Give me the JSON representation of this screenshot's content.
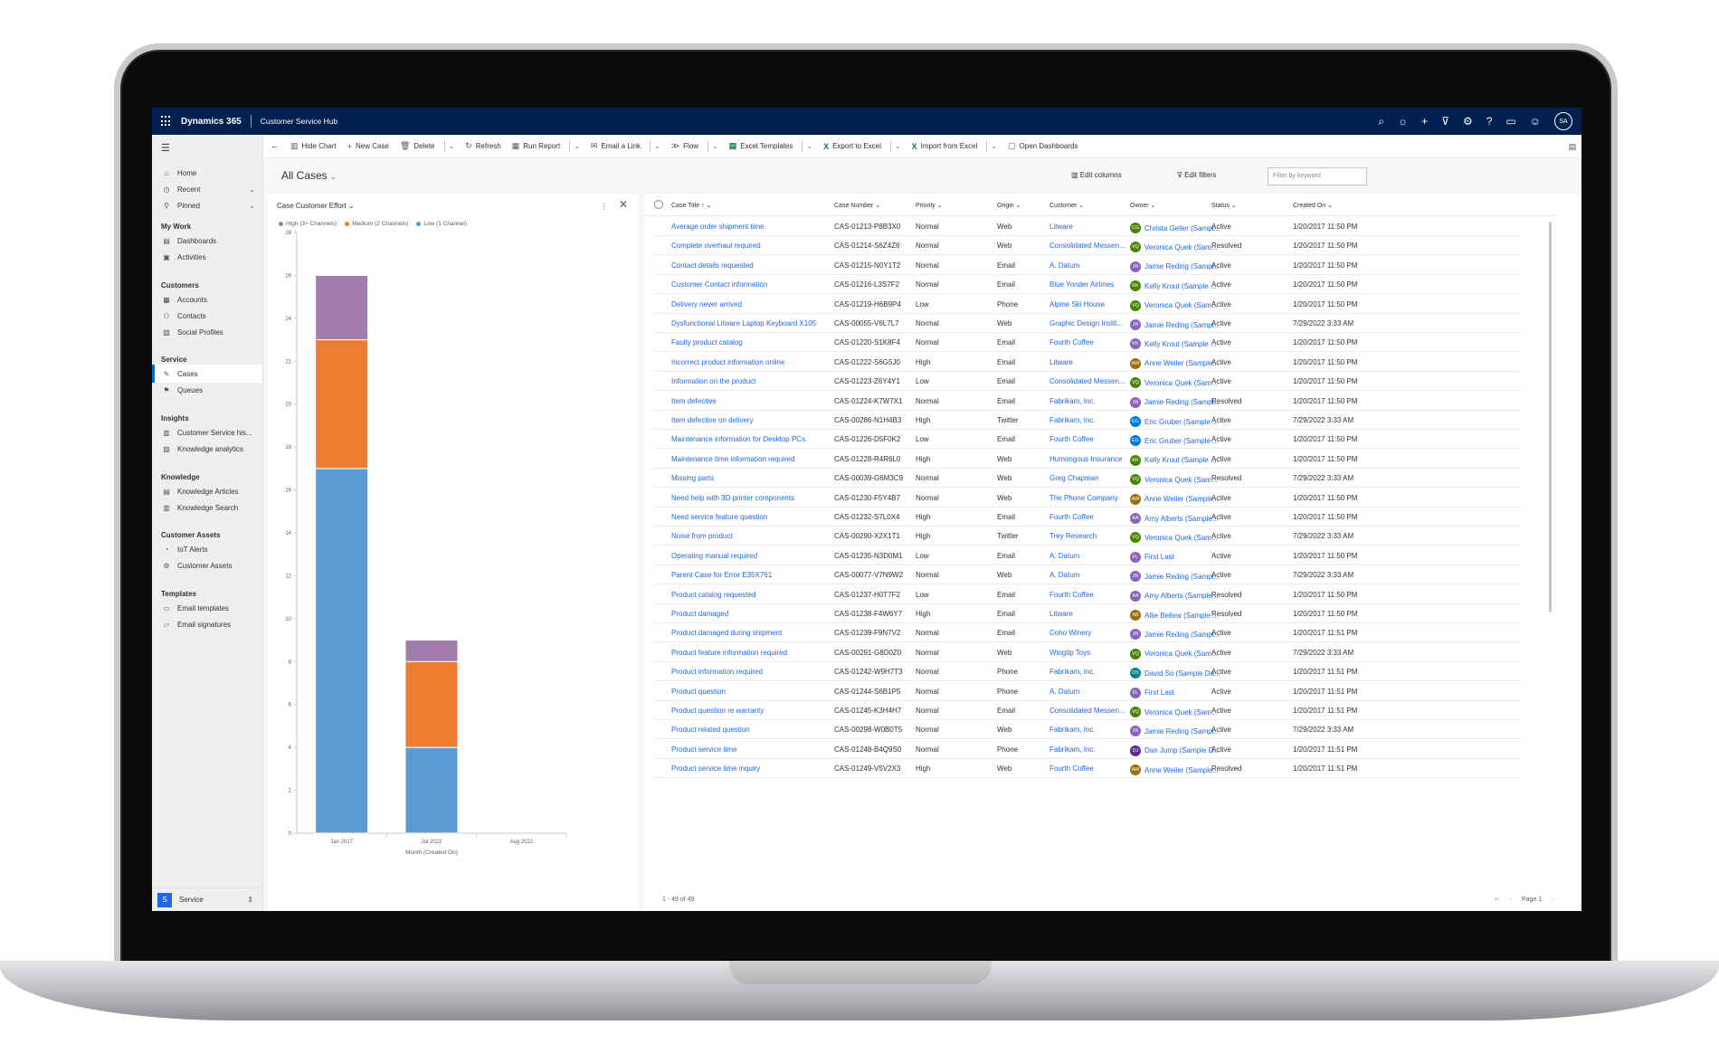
{
  "topbar": {
    "brand": "Dynamics 365",
    "app": "Customer Service Hub",
    "avatar": "SA"
  },
  "sidebar": {
    "items": [
      {
        "label": "Home",
        "icon": "home-icon",
        "glyph": "⌂",
        "y": 30
      },
      {
        "label": "Recent",
        "icon": "clock-icon",
        "glyph": "◷",
        "y": 48,
        "chev": true
      },
      {
        "label": "Pinned",
        "icon": "pin-icon",
        "glyph": "⚲",
        "y": 66,
        "chev": true
      },
      {
        "label": "Dashboards",
        "icon": "dashboard-icon",
        "glyph": "▤",
        "y": 105
      },
      {
        "label": "Activities",
        "icon": "activities-icon",
        "glyph": "▣",
        "y": 123
      },
      {
        "label": "Accounts",
        "icon": "accounts-icon",
        "glyph": "▦",
        "y": 170
      },
      {
        "label": "Contacts",
        "icon": "contact-icon",
        "glyph": "⚇",
        "y": 188
      },
      {
        "label": "Social Profiles",
        "icon": "social-icon",
        "glyph": "▧",
        "y": 206
      },
      {
        "label": "Cases",
        "icon": "wrench-icon",
        "glyph": "✎",
        "y": 252,
        "active": true
      },
      {
        "label": "Queues",
        "icon": "queue-icon",
        "glyph": "⚑",
        "y": 270
      },
      {
        "label": "Customer Service his...",
        "icon": "insights-icon",
        "glyph": "▥",
        "y": 317
      },
      {
        "label": "Knowledge analytics",
        "icon": "analytics-icon",
        "glyph": "▨",
        "y": 335
      },
      {
        "label": "Knowledge Articles",
        "icon": "article-icon",
        "glyph": "▤",
        "y": 382
      },
      {
        "label": "Knowledge Search",
        "icon": "search-book-icon",
        "glyph": "▥",
        "y": 400
      },
      {
        "label": "IoT Alerts",
        "icon": "alert-icon",
        "glyph": "◔",
        "y": 446
      },
      {
        "label": "Customer Assets",
        "icon": "asset-icon",
        "glyph": "⚙",
        "y": 464
      },
      {
        "label": "Email templates",
        "icon": "email-template-icon",
        "glyph": "▭",
        "y": 511
      },
      {
        "label": "Email signatures",
        "icon": "signature-icon",
        "glyph": "▱",
        "y": 529
      }
    ],
    "groups": [
      {
        "label": "My Work",
        "y": 89
      },
      {
        "label": "Customers",
        "y": 154
      },
      {
        "label": "Service",
        "y": 236
      },
      {
        "label": "Insights",
        "y": 301
      },
      {
        "label": "Knowledge",
        "y": 366
      },
      {
        "label": "Customer Assets",
        "y": 430
      },
      {
        "label": "Templates",
        "y": 495
      }
    ],
    "area": {
      "badge": "S",
      "label": "Service"
    }
  },
  "commands": [
    {
      "label": "Hide Chart",
      "glyph": "▥",
      "icon": "chart-icon"
    },
    {
      "label": "New Case",
      "glyph": "+",
      "icon": "add-icon"
    },
    {
      "label": "Delete",
      "glyph": "🗑",
      "icon": "trash-icon",
      "dd": true
    },
    {
      "label": "Refresh",
      "glyph": "↻",
      "icon": "refresh-icon"
    },
    {
      "label": "Run Report",
      "glyph": "▦",
      "icon": "report-icon",
      "dd": true
    },
    {
      "label": "Email a Link",
      "glyph": "✉",
      "icon": "email-icon",
      "dd": true
    },
    {
      "label": "Flow",
      "glyph": "≫",
      "icon": "flow-icon",
      "dd": true
    },
    {
      "label": "Excel Templates",
      "glyph": "▤",
      "icon": "excel-template-icon",
      "dd": true
    },
    {
      "label": "Export to Excel",
      "glyph": "X",
      "icon": "excel-icon",
      "dd": true
    },
    {
      "label": "Import from Excel",
      "glyph": "X",
      "icon": "excel-import-icon",
      "dd": true
    },
    {
      "label": "Open Dashboards",
      "glyph": "▢",
      "icon": "dashboard-open-icon"
    }
  ],
  "view": {
    "title": "All Cases",
    "edit_columns": "Edit columns",
    "edit_filters": "Edit filters",
    "filter_placeholder": "Filter by keyword"
  },
  "chart_data": {
    "type": "bar",
    "title": "Case Customer Effort",
    "stacked": true,
    "categories": [
      "Jan 2017",
      "Jul 2022",
      "Aug 2022"
    ],
    "series": [
      {
        "name": "Low (1 Channel)",
        "color": "#5b9bd5",
        "values": [
          17,
          4,
          0
        ]
      },
      {
        "name": "Medium (2 Channels)",
        "color": "#ed7d31",
        "values": [
          6,
          4,
          0
        ]
      },
      {
        "name": "High (3+ Channels)",
        "color": "#a27cad",
        "values": [
          3,
          1,
          0
        ]
      }
    ],
    "legend_order": [
      "High (3+ Channels)",
      "Medium (2 Channels)",
      "Low (1 Channel)"
    ],
    "xlabel": "Month (Created On)",
    "ylabel": "",
    "ylim": [
      0,
      28
    ],
    "yticks": [
      0,
      2,
      4,
      6,
      8,
      10,
      12,
      14,
      16,
      18,
      20,
      22,
      24,
      26,
      28
    ]
  },
  "grid": {
    "headers": [
      "Case Title",
      "Case Number",
      "Priority",
      "Origin",
      "Customer",
      "Owner",
      "Status",
      "Created On"
    ],
    "rows": [
      [
        "Average order shipment time",
        "CAS-01213-P8B3X0",
        "Normal",
        "Web",
        "Litware",
        "Christa Geller (Sampl...",
        "Active",
        "1/20/2017 11:50 PM",
        "CG",
        "#498205"
      ],
      [
        "Complete overhaul required",
        "CAS-01214-S6Z4Z6",
        "Normal",
        "Web",
        "Consolidated Messen...",
        "Veronica Quek (Sam...",
        "Resolved",
        "1/20/2017 11:50 PM",
        "VQ",
        "#498205"
      ],
      [
        "Contact details requested",
        "CAS-01215-N0Y1T2",
        "Normal",
        "Email",
        "A. Datum",
        "Jamie Reding (Sampl...",
        "Active",
        "1/20/2017 11:50 PM",
        "JR",
        "#8764b8"
      ],
      [
        "Customer Contact information",
        "CAS-01216-L3S7F2",
        "Normal",
        "Email",
        "Blue Yonder Airlines",
        "Kelly Krout (Sample ...",
        "Active",
        "1/20/2017 11:50 PM",
        "KK",
        "#498205"
      ],
      [
        "Delivery never arrived",
        "CAS-01219-H6B9P4",
        "Low",
        "Phone",
        "Alpine Ski House",
        "Veronica Quek (Sam...",
        "Active",
        "1/20/2017 11:50 PM",
        "VQ",
        "#498205"
      ],
      [
        "Dysfunctional Litware Laptop Keyboard X105",
        "CAS-00055-V6L7L7",
        "Normal",
        "Web",
        "Graphic Design Instit...",
        "Jamie Reding (Sampl...",
        "Active",
        "7/29/2022 3:33 AM",
        "JR",
        "#8764b8"
      ],
      [
        "Faulty product catalog",
        "CAS-01220-S1K8F4",
        "Normal",
        "Email",
        "Fourth Coffee",
        "Kelly Krout (Sample ...",
        "Active",
        "1/20/2017 11:50 PM",
        "KK",
        "#8764b8"
      ],
      [
        "Incorrect product information online",
        "CAS-01222-S6G5J0",
        "High",
        "Email",
        "Litware",
        "Anne Weiler (Sample...",
        "Active",
        "1/20/2017 11:50 PM",
        "AW",
        "#986f0b"
      ],
      [
        "Information on the product",
        "CAS-01223-Z6Y4Y1",
        "Low",
        "Email",
        "Consolidated Messen...",
        "Veronica Quek (Sam...",
        "Active",
        "1/20/2017 11:50 PM",
        "VQ",
        "#498205"
      ],
      [
        "Item defective",
        "CAS-01224-K7W7X1",
        "Normal",
        "Email",
        "Fabrikam, Inc.",
        "Jamie Reding (Sampl...",
        "Resolved",
        "1/20/2017 11:50 PM",
        "JR",
        "#8764b8"
      ],
      [
        "Item defective on delivery",
        "CAS-00286-N1H4B3",
        "High",
        "Twitter",
        "Fabrikam, Inc.",
        "Eric Gruber (Sample ...",
        "Active",
        "7/29/2022 3:33 AM",
        "EG",
        "#0078d4"
      ],
      [
        "Maintenance information for Desktop PCs.",
        "CAS-01226-D5F0K2",
        "Low",
        "Email",
        "Fourth Coffee",
        "Eric Gruber (Sample ...",
        "Active",
        "1/20/2017 11:50 PM",
        "EG",
        "#0078d4"
      ],
      [
        "Maintenance time information required",
        "CAS-01228-R4R6L0",
        "High",
        "Web",
        "Humongous Insurance",
        "Kelly Krout (Sample ...",
        "Active",
        "1/20/2017 11:50 PM",
        "KK",
        "#498205"
      ],
      [
        "Missing parts",
        "CAS-00039-G6M3C9",
        "Normal",
        "Web",
        "Greg Chapman",
        "Veronica Quek (Sam...",
        "Resolved",
        "7/29/2022 3:33 AM",
        "VQ",
        "#498205"
      ],
      [
        "Need help with 3D printer components",
        "CAS-01230-F5Y4B7",
        "Normal",
        "Web",
        "The Phone Company",
        "Anne Weiler (Sample...",
        "Active",
        "1/20/2017 11:50 PM",
        "AW",
        "#986f0b"
      ],
      [
        "Need service feature question",
        "CAS-01232-S7L0X4",
        "High",
        "Email",
        "Fourth Coffee",
        "Amy Alberts (Sample...",
        "Active",
        "1/20/2017 11:50 PM",
        "AA",
        "#8764b8"
      ],
      [
        "Noise from product",
        "CAS-00290-X2X1T1",
        "High",
        "Twitter",
        "Trey Research",
        "Veronica Quek (Sam...",
        "Active",
        "7/29/2022 3:33 AM",
        "VQ",
        "#498205"
      ],
      [
        "Operating manual required",
        "CAS-01235-N3D0M1",
        "Low",
        "Email",
        "A. Datum",
        "First Last",
        "Active",
        "1/20/2017 11:50 PM",
        "FL",
        "#8764b8"
      ],
      [
        "Parent Case for Error E35X761",
        "CAS-00077-V7N9W2",
        "Normal",
        "Web",
        "A. Datum",
        "Jamie Reding (Sampl...",
        "Active",
        "7/29/2022 3:33 AM",
        "JR",
        "#8764b8"
      ],
      [
        "Product catalog requested",
        "CAS-01237-H0T7F2",
        "Low",
        "Email",
        "Fourth Coffee",
        "Amy Alberts (Sample...",
        "Resolved",
        "1/20/2017 11:50 PM",
        "AA",
        "#8764b8"
      ],
      [
        "Product damaged",
        "CAS-01238-F4W6Y7",
        "High",
        "Email",
        "Litware",
        "Allie Bellew (Sample ...",
        "Resolved",
        "1/20/2017 11:50 PM",
        "AB",
        "#986f0b"
      ],
      [
        "Product damaged during shipment",
        "CAS-01239-F9N7V2",
        "Normal",
        "Email",
        "Coho Winery",
        "Jamie Reding (Sampl...",
        "Active",
        "1/20/2017 11:51 PM",
        "JR",
        "#8764b8"
      ],
      [
        "Product feature information required",
        "CAS-00291-G8D0Z0",
        "Normal",
        "Web",
        "Wingtip Toys",
        "Veronica Quek (Sam...",
        "Active",
        "7/29/2022 3:33 AM",
        "VQ",
        "#498205"
      ],
      [
        "Product information required",
        "CAS-01242-W9H7T3",
        "Normal",
        "Phone",
        "Fabrikam, Inc.",
        "David So (Sample Da...",
        "Active",
        "1/20/2017 11:51 PM",
        "DS",
        "#038387"
      ],
      [
        "Product question",
        "CAS-01244-S6B1P5",
        "Normal",
        "Phone",
        "A. Datum",
        "First Last",
        "Active",
        "1/20/2017 11:51 PM",
        "FL",
        "#8764b8"
      ],
      [
        "Product question re warranty",
        "CAS-01245-K3H4H7",
        "Normal",
        "Email",
        "Consolidated Messen...",
        "Veronica Quek (Sam...",
        "Active",
        "1/20/2017 11:51 PM",
        "VQ",
        "#498205"
      ],
      [
        "Product related question",
        "CAS-00298-W0B0T5",
        "Normal",
        "Web",
        "Fabrikam, Inc.",
        "Jamie Reding (Sampl...",
        "Active",
        "7/29/2022 3:33 AM",
        "JR",
        "#8764b8"
      ],
      [
        "Product service time",
        "CAS-01248-B4Q9S0",
        "Normal",
        "Phone",
        "Fabrikam, Inc.",
        "Dan Jump (Sample D...",
        "Active",
        "1/20/2017 11:51 PM",
        "DJ",
        "#5c2e91"
      ],
      [
        "Product service time inquiry",
        "CAS-01249-V5V2X3",
        "High",
        "Web",
        "Fourth Coffee",
        "Anne Weiler (Sample...",
        "Resolved",
        "1/20/2017 11:51 PM",
        "AW",
        "#986f0b"
      ]
    ],
    "footer_count": "1 - 49 of 49",
    "page_label": "Page 1"
  }
}
